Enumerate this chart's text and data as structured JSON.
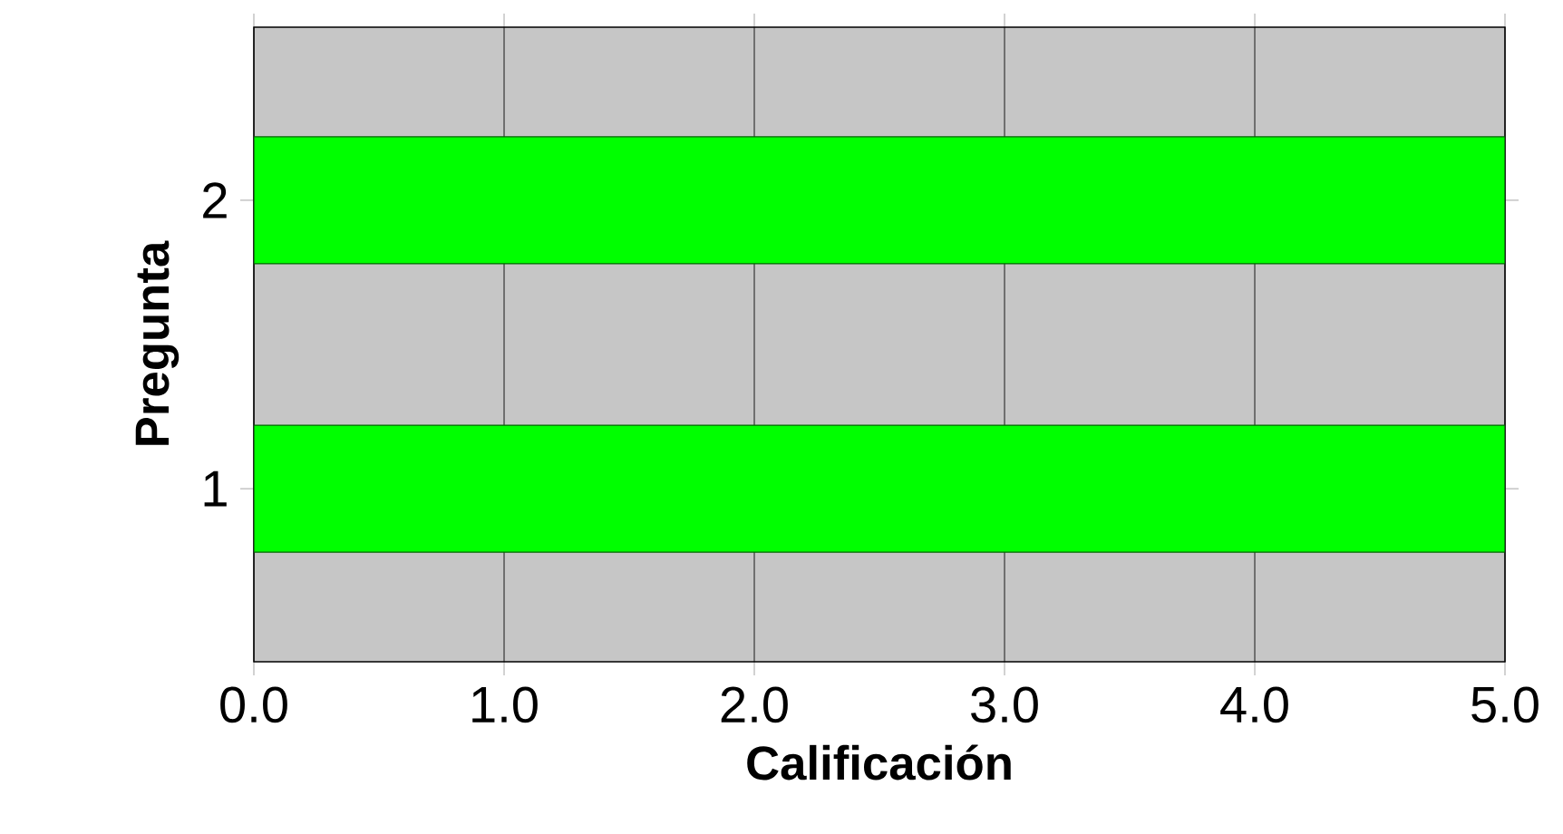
{
  "chart_data": {
    "type": "bar",
    "orientation": "horizontal",
    "categories": [
      "2",
      "1"
    ],
    "values": [
      5.0,
      5.0
    ],
    "color": "#00ff00",
    "xlim": [
      0,
      5
    ],
    "xticks": [
      {
        "value": 0,
        "label": "0.0"
      },
      {
        "value": 1,
        "label": "1.0"
      },
      {
        "value": 2,
        "label": "2.0"
      },
      {
        "value": 3,
        "label": "3.0"
      },
      {
        "value": 4,
        "label": "4.0"
      },
      {
        "value": 5,
        "label": "5.0"
      }
    ],
    "xlabel": "Calificación",
    "ylabel": "Pregunta",
    "grid": "x"
  }
}
